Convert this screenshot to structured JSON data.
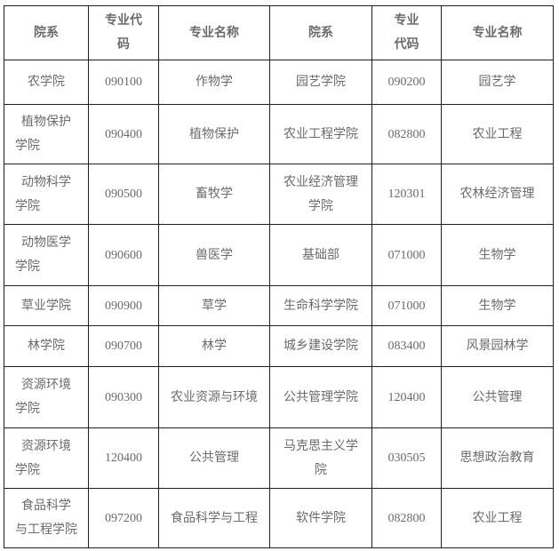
{
  "colors": {
    "border": "#1f1f1f",
    "text": "#6b6b6b",
    "background": "#ffffff"
  },
  "table": {
    "headers": [
      "院系",
      "专业代\n码",
      "专业名称",
      "院系",
      "专业\n代码",
      "专业名称"
    ],
    "rows": [
      [
        "农学院",
        "090100",
        "作物学",
        "园艺学院",
        "090200",
        "园艺学"
      ],
      [
        "植物保护\n学院",
        "090400",
        "植物保护",
        "农业工程学院",
        "082800",
        "农业工程"
      ],
      [
        "动物科学\n学院",
        "090500",
        "畜牧学",
        "农业经济管理\n学院",
        "120301",
        "农林经济管理"
      ],
      [
        "动物医学\n学院",
        "090600",
        "兽医学",
        "基础部",
        "071000",
        "生物学"
      ],
      [
        "草业学院",
        "090900",
        "草学",
        "生命科学学院",
        "071000",
        "生物学"
      ],
      [
        "林学院",
        "090700",
        "林学",
        "城乡建设学院",
        "083400",
        "风景园林学"
      ],
      [
        "资源环境\n学院",
        "090300",
        "农业资源与环境",
        "公共管理学院",
        "120400",
        "公共管理"
      ],
      [
        "资源环境\n学院",
        "120400",
        "公共管理",
        "马克思主义学\n院",
        "030505",
        "思想政治教育"
      ],
      [
        "食品科学\n与工程学院",
        "097200",
        "食品科学与工程",
        "软件学院",
        "082800",
        "农业工程"
      ]
    ]
  }
}
